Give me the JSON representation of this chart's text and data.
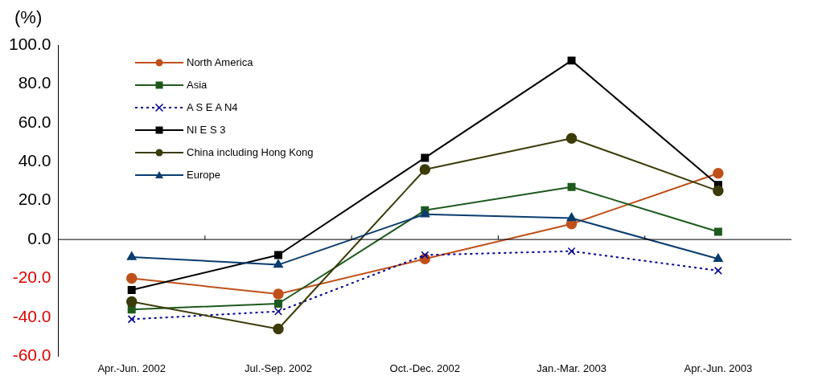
{
  "chart_data": {
    "type": "line",
    "ylabel": "(%)",
    "categories": [
      "Apr.-Jun. 2002",
      "Jul.-Sep. 2002",
      "Oct.-Dec. 2002",
      "Jan.-Mar. 2003",
      "Apr.-Jun. 2003"
    ],
    "series": [
      {
        "name": "North America",
        "color": "#c0501a",
        "marker": "circle",
        "values": [
          -20,
          -28,
          -10,
          8,
          34
        ]
      },
      {
        "name": "Asia",
        "color": "#1e5a1e",
        "marker": "square",
        "values": [
          -36,
          -33,
          15,
          27,
          4
        ]
      },
      {
        "name": "A S E A N4",
        "color": "#000090",
        "marker": "cross",
        "line_style": "dotted",
        "values": [
          -41,
          -37,
          -8,
          -6,
          -16
        ]
      },
      {
        "name": "NI E S 3",
        "color": "#000000",
        "marker": "square",
        "values": [
          -26,
          -8,
          42,
          92,
          28
        ]
      },
      {
        "name": "China including Hong Kong",
        "color": "#3c3c0a",
        "marker": "circle",
        "values": [
          -32,
          -46,
          36,
          52,
          25
        ]
      },
      {
        "name": "Europe",
        "color": "#0a3c6e",
        "marker": "triangle",
        "values": [
          -9,
          -13,
          13,
          11,
          -10
        ]
      }
    ],
    "ylim": [
      -60,
      100
    ],
    "yticks": [
      {
        "value": -60,
        "label": "-60.0"
      },
      {
        "value": -40,
        "label": "-40.0"
      },
      {
        "value": -20,
        "label": "-20.0"
      },
      {
        "value": 0,
        "label": "0.0"
      },
      {
        "value": 20,
        "label": "20.0"
      },
      {
        "value": 40,
        "label": "40.0"
      },
      {
        "value": 60,
        "label": "60.0"
      },
      {
        "value": 80,
        "label": "80.0"
      },
      {
        "value": 100,
        "label": "100.0"
      }
    ],
    "legend": "top left",
    "line_style": "solid"
  }
}
